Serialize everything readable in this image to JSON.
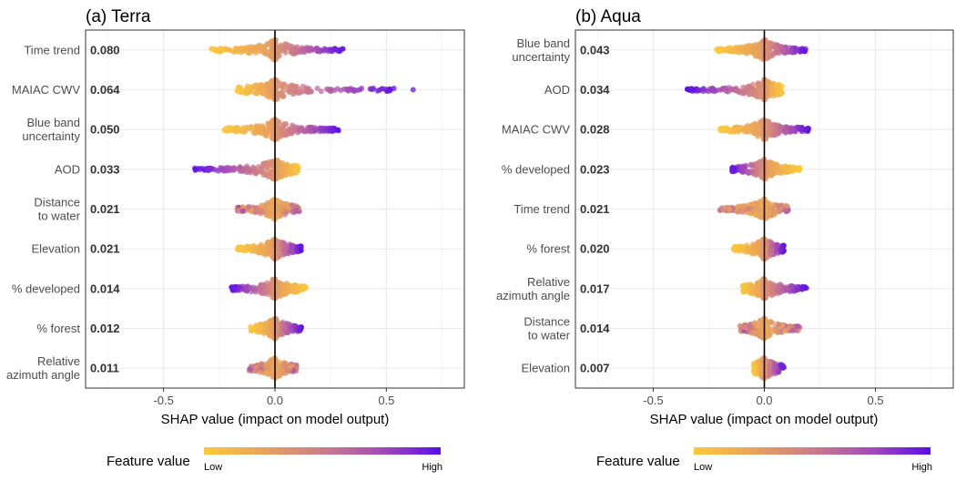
{
  "chart_data": [
    {
      "type": "scatter",
      "subtype": "shap-beeswarm",
      "title": "(a) Terra",
      "xlabel": "SHAP value (impact on model output)",
      "xlim": [
        -0.85,
        0.85
      ],
      "xticks": [
        -0.5,
        0.0,
        0.5
      ],
      "xtick_labels": [
        "-0.5",
        "0.0",
        "0.5"
      ],
      "zero_line": 0,
      "grid": true,
      "features": [
        {
          "label": "Time trend",
          "importance": "0.080",
          "range": [
            -0.29,
            0.31
          ],
          "high_direction": "positive",
          "outliers": []
        },
        {
          "label": "MAIAC CWV",
          "importance": "0.064",
          "range": [
            -0.17,
            0.54
          ],
          "high_direction": "positive",
          "outliers": [
            0.62
          ]
        },
        {
          "label": "Blue band uncertainty",
          "importance": "0.050",
          "range": [
            -0.23,
            0.29
          ],
          "high_direction": "positive",
          "outliers": []
        },
        {
          "label": "AOD",
          "importance": "0.033",
          "range": [
            -0.36,
            0.11
          ],
          "high_direction": "negative",
          "outliers": []
        },
        {
          "label": "Distance to water",
          "importance": "0.021",
          "range": [
            -0.17,
            0.11
          ],
          "high_direction": "mixed",
          "outliers": []
        },
        {
          "label": "Elevation",
          "importance": "0.021",
          "range": [
            -0.17,
            0.12
          ],
          "high_direction": "positive",
          "outliers": []
        },
        {
          "label": "% developed",
          "importance": "0.014",
          "range": [
            -0.2,
            0.14
          ],
          "high_direction": "negative",
          "outliers": []
        },
        {
          "label": "% forest",
          "importance": "0.012",
          "range": [
            -0.11,
            0.12
          ],
          "high_direction": "positive",
          "outliers": []
        },
        {
          "label": "Relative azimuth angle",
          "importance": "0.011",
          "range": [
            -0.12,
            0.1
          ],
          "high_direction": "mixed",
          "outliers": []
        }
      ]
    },
    {
      "type": "scatter",
      "subtype": "shap-beeswarm",
      "title": "(b) Aqua",
      "xlabel": "SHAP value (impact on model output)",
      "xlim": [
        -0.85,
        0.85
      ],
      "xticks": [
        -0.5,
        0.0,
        0.5
      ],
      "xtick_labels": [
        "-0.5",
        "0.0",
        "0.5"
      ],
      "zero_line": 0,
      "grid": true,
      "features": [
        {
          "label": "Blue band uncertainty",
          "importance": "0.043",
          "range": [
            -0.22,
            0.19
          ],
          "high_direction": "positive",
          "outliers": []
        },
        {
          "label": "AOD",
          "importance": "0.034",
          "range": [
            -0.35,
            0.08
          ],
          "high_direction": "negative",
          "outliers": []
        },
        {
          "label": "MAIAC CWV",
          "importance": "0.028",
          "range": [
            -0.2,
            0.2
          ],
          "high_direction": "positive",
          "outliers": []
        },
        {
          "label": "% developed",
          "importance": "0.023",
          "range": [
            -0.15,
            0.16
          ],
          "high_direction": "negative",
          "outliers": []
        },
        {
          "label": "Time trend",
          "importance": "0.021",
          "range": [
            -0.2,
            0.11
          ],
          "high_direction": "mixed",
          "outliers": []
        },
        {
          "label": "% forest",
          "importance": "0.020",
          "range": [
            -0.14,
            0.09
          ],
          "high_direction": "positive",
          "outliers": []
        },
        {
          "label": "Relative azimuth angle",
          "importance": "0.017",
          "range": [
            -0.1,
            0.19
          ],
          "high_direction": "positive",
          "outliers": []
        },
        {
          "label": "Distance to water",
          "importance": "0.014",
          "range": [
            -0.11,
            0.16
          ],
          "high_direction": "mixed",
          "outliers": []
        },
        {
          "label": "Elevation",
          "importance": "0.007",
          "range": [
            -0.05,
            0.09
          ],
          "high_direction": "positive",
          "outliers": []
        }
      ]
    }
  ],
  "legend": {
    "title": "Feature value",
    "low_label": "Low",
    "high_label": "High",
    "colors": [
      "#fcc83a",
      "#e9a25a",
      "#cd7c89",
      "#a44bb8",
      "#5b0de8"
    ]
  },
  "colors": {
    "panel_border": "#333333",
    "grid": "#ebebeb",
    "zero_line": "#000000",
    "text": "#4d4d4d"
  }
}
